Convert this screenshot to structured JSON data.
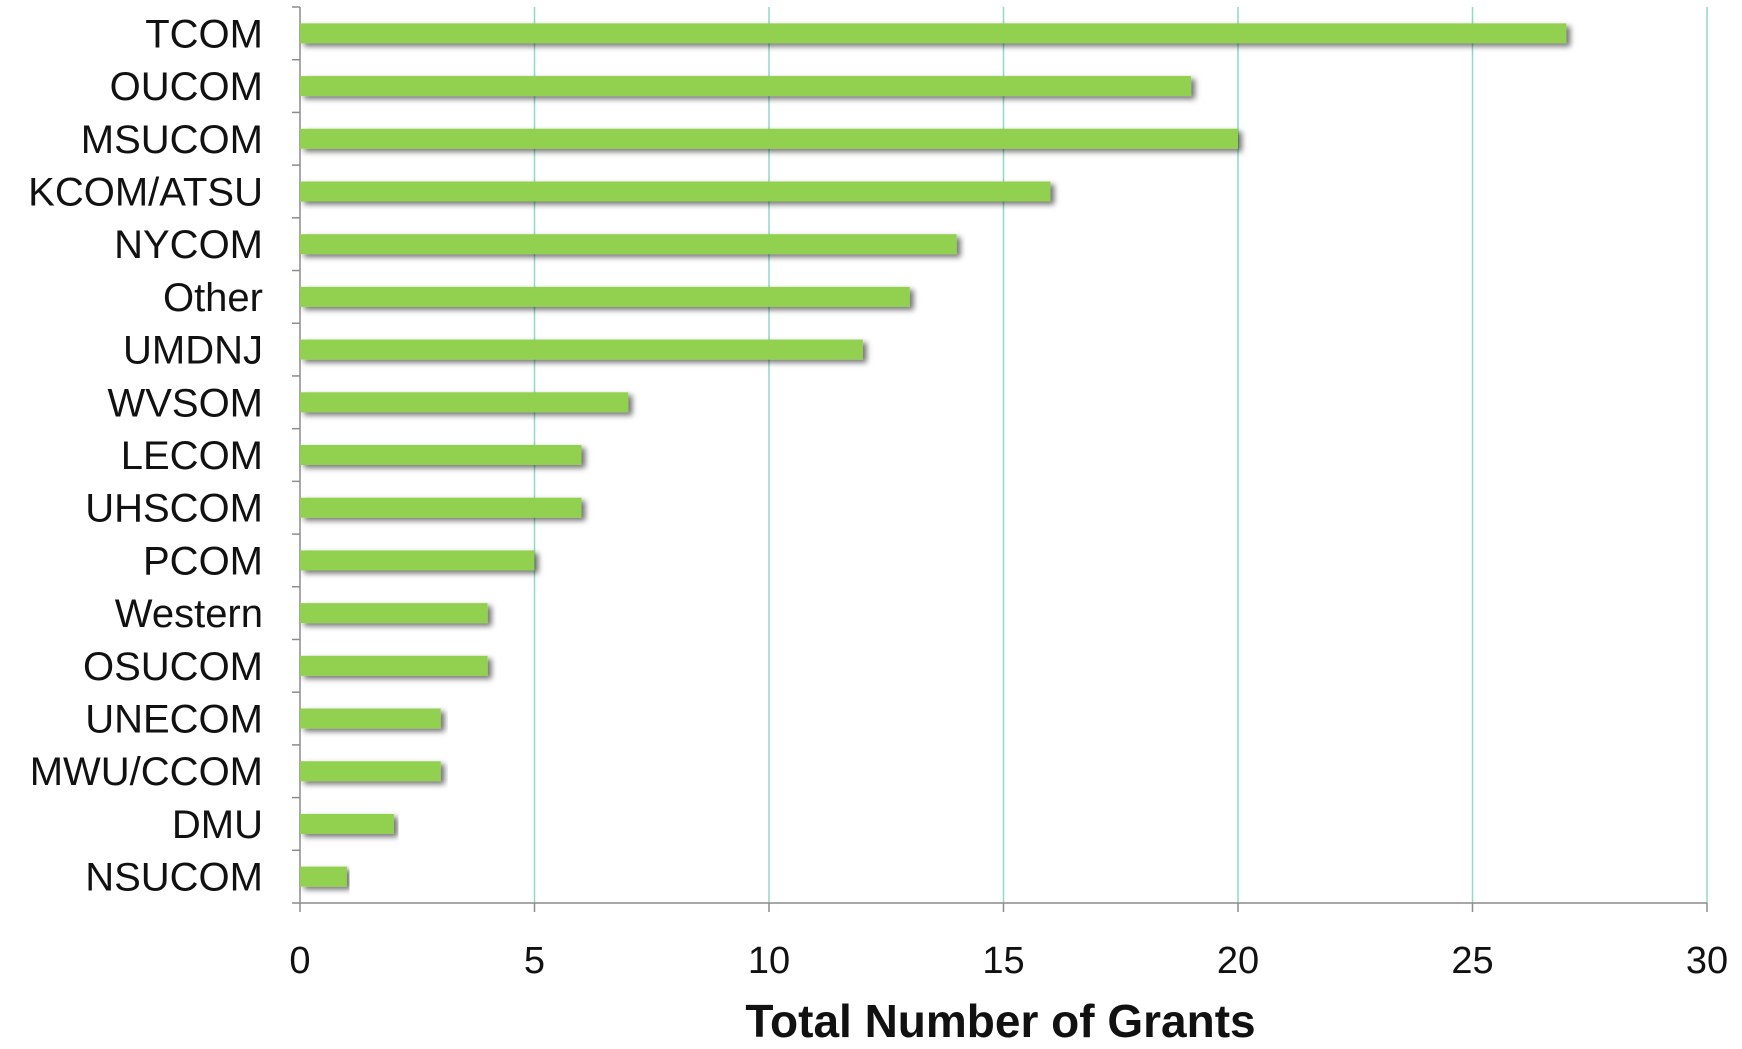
{
  "chart_data": {
    "type": "bar",
    "orientation": "horizontal",
    "title": "",
    "xlabel": "Total Number of Grants",
    "ylabel": "",
    "xlim": [
      0,
      30
    ],
    "x_ticks": [
      0,
      5,
      10,
      15,
      20,
      25,
      30
    ],
    "grid": "vertical gridlines on",
    "legend": "none",
    "categories": [
      "TCOM",
      "OUCOM",
      "MSUCOM",
      "KCOM/ATSU",
      "NYCOM",
      "Other",
      "UMDNJ",
      "WVSOM",
      "LECOM",
      "UHSCOM",
      "PCOM",
      "Western",
      "OSUCOM",
      "UNECOM",
      "MWU/CCOM",
      "DMU",
      "NSUCOM"
    ],
    "values": [
      27,
      19,
      20,
      16,
      14,
      13,
      12,
      7,
      6,
      6,
      5,
      4,
      4,
      3,
      3,
      2,
      1
    ],
    "colors": {
      "bar": "#92d050",
      "grid": "#8fd9c9",
      "axis": "#8c8c8c",
      "shadow": "#7f7f7f"
    }
  }
}
